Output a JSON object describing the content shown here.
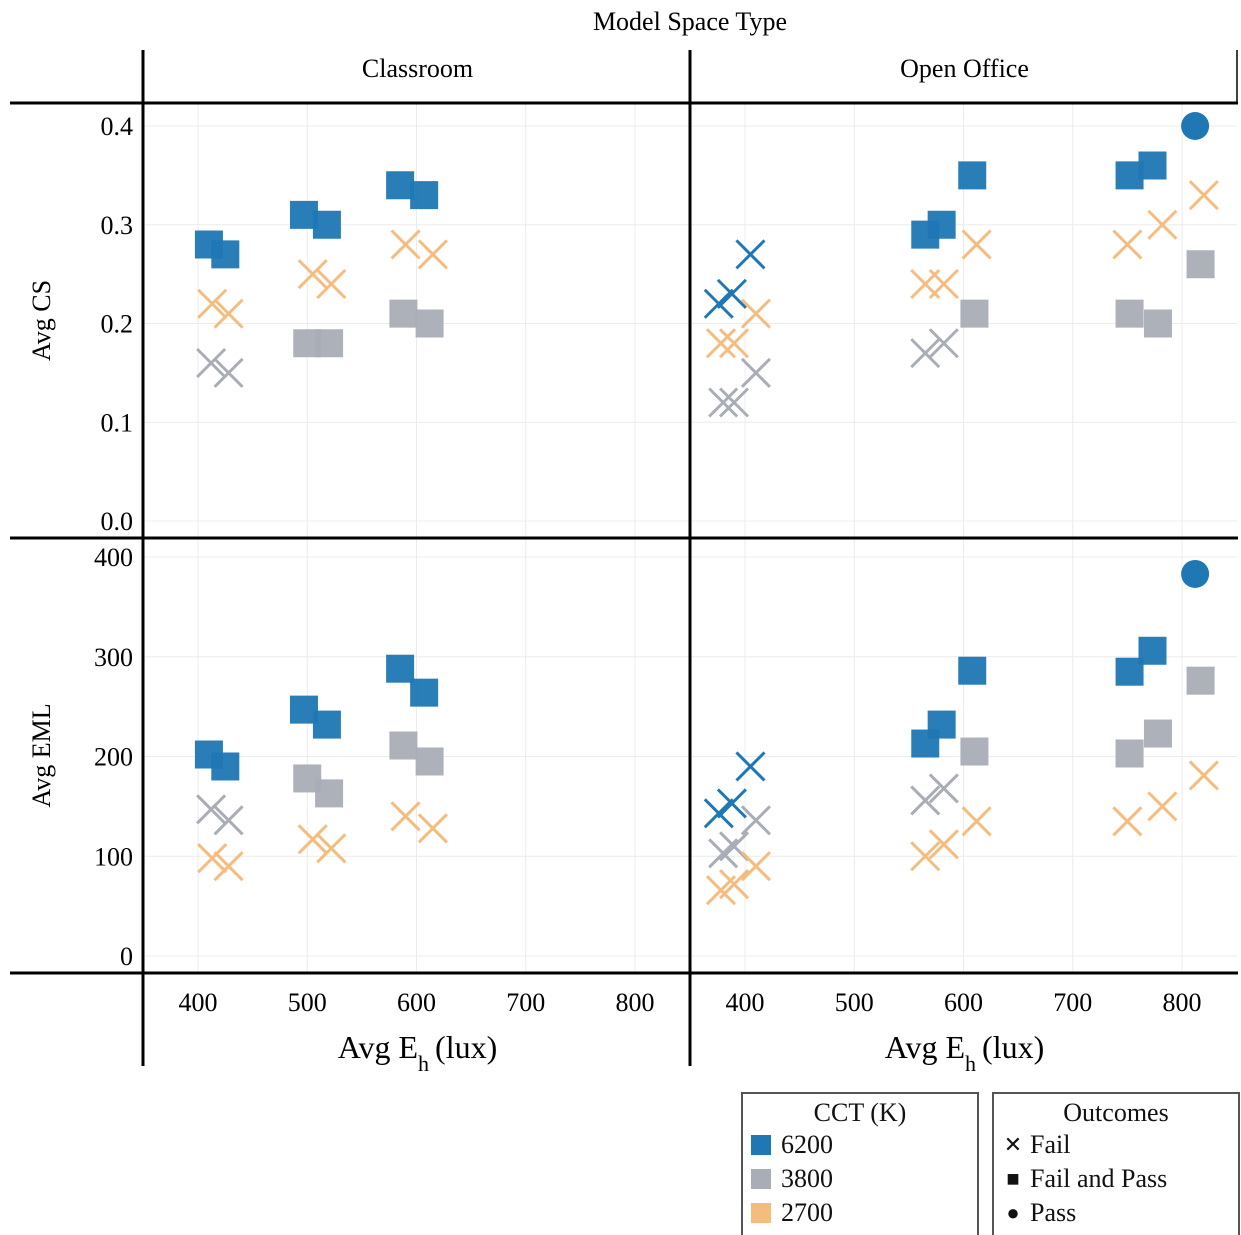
{
  "chart_data": {
    "type": "scatter",
    "title": "Model Space Type",
    "xlabel_main": "Avg E",
    "xlabel_sub": "h",
    "xlabel_unit": "(lux)",
    "xlim": [
      350,
      830
    ],
    "x_ticks": [
      "400",
      "500",
      "600",
      "700",
      "800"
    ],
    "columns": [
      "Classroom",
      "Open Office"
    ],
    "rows": [
      {
        "name": "Avg CS",
        "ylim": [
          0,
          0.42
        ],
        "ticks": [
          "0.0",
          "0.1",
          "0.2",
          "0.3",
          "0.4"
        ],
        "tick_values": [
          0,
          0.1,
          0.2,
          0.3,
          0.4
        ]
      },
      {
        "name": "Avg EML",
        "ylim": [
          0,
          405
        ],
        "ticks": [
          "0",
          "100",
          "200",
          "300",
          "400"
        ],
        "tick_values": [
          0,
          100,
          200,
          300,
          400
        ]
      }
    ],
    "colors": {
      "6200": "#1f77b4",
      "3800": "#a9adb6",
      "2700": "#f6bc7e"
    },
    "panels": [
      {
        "row": 0,
        "col": 0,
        "points": [
          {
            "x": 410,
            "y": 0.28,
            "cct": "6200",
            "outcome": "Fail and Pass"
          },
          {
            "x": 425,
            "y": 0.27,
            "cct": "6200",
            "outcome": "Fail and Pass"
          },
          {
            "x": 497,
            "y": 0.31,
            "cct": "6200",
            "outcome": "Fail and Pass"
          },
          {
            "x": 518,
            "y": 0.3,
            "cct": "6200",
            "outcome": "Fail and Pass"
          },
          {
            "x": 585,
            "y": 0.34,
            "cct": "6200",
            "outcome": "Fail and Pass"
          },
          {
            "x": 607,
            "y": 0.33,
            "cct": "6200",
            "outcome": "Fail and Pass"
          },
          {
            "x": 413,
            "y": 0.22,
            "cct": "2700",
            "outcome": "Fail"
          },
          {
            "x": 428,
            "y": 0.21,
            "cct": "2700",
            "outcome": "Fail"
          },
          {
            "x": 505,
            "y": 0.25,
            "cct": "2700",
            "outcome": "Fail"
          },
          {
            "x": 522,
            "y": 0.24,
            "cct": "2700",
            "outcome": "Fail"
          },
          {
            "x": 590,
            "y": 0.28,
            "cct": "2700",
            "outcome": "Fail"
          },
          {
            "x": 615,
            "y": 0.27,
            "cct": "2700",
            "outcome": "Fail"
          },
          {
            "x": 412,
            "y": 0.16,
            "cct": "3800",
            "outcome": "Fail"
          },
          {
            "x": 428,
            "y": 0.15,
            "cct": "3800",
            "outcome": "Fail"
          },
          {
            "x": 500,
            "y": 0.18,
            "cct": "3800",
            "outcome": "Fail and Pass"
          },
          {
            "x": 520,
            "y": 0.18,
            "cct": "3800",
            "outcome": "Fail and Pass"
          },
          {
            "x": 588,
            "y": 0.21,
            "cct": "3800",
            "outcome": "Fail and Pass"
          },
          {
            "x": 612,
            "y": 0.2,
            "cct": "3800",
            "outcome": "Fail and Pass"
          }
        ]
      },
      {
        "row": 0,
        "col": 1,
        "points": [
          {
            "x": 812,
            "y": 0.4,
            "cct": "6200",
            "outcome": "Pass"
          },
          {
            "x": 608,
            "y": 0.35,
            "cct": "6200",
            "outcome": "Fail and Pass"
          },
          {
            "x": 752,
            "y": 0.35,
            "cct": "6200",
            "outcome": "Fail and Pass"
          },
          {
            "x": 773,
            "y": 0.36,
            "cct": "6200",
            "outcome": "Fail and Pass"
          },
          {
            "x": 565,
            "y": 0.29,
            "cct": "6200",
            "outcome": "Fail and Pass"
          },
          {
            "x": 580,
            "y": 0.3,
            "cct": "6200",
            "outcome": "Fail and Pass"
          },
          {
            "x": 376,
            "y": 0.22,
            "cct": "6200",
            "outcome": "Fail"
          },
          {
            "x": 388,
            "y": 0.23,
            "cct": "6200",
            "outcome": "Fail"
          },
          {
            "x": 405,
            "y": 0.27,
            "cct": "6200",
            "outcome": "Fail"
          },
          {
            "x": 378,
            "y": 0.18,
            "cct": "2700",
            "outcome": "Fail"
          },
          {
            "x": 390,
            "y": 0.18,
            "cct": "2700",
            "outcome": "Fail"
          },
          {
            "x": 410,
            "y": 0.21,
            "cct": "2700",
            "outcome": "Fail"
          },
          {
            "x": 565,
            "y": 0.24,
            "cct": "2700",
            "outcome": "Fail"
          },
          {
            "x": 582,
            "y": 0.24,
            "cct": "2700",
            "outcome": "Fail"
          },
          {
            "x": 612,
            "y": 0.28,
            "cct": "2700",
            "outcome": "Fail"
          },
          {
            "x": 750,
            "y": 0.28,
            "cct": "2700",
            "outcome": "Fail"
          },
          {
            "x": 782,
            "y": 0.3,
            "cct": "2700",
            "outcome": "Fail"
          },
          {
            "x": 820,
            "y": 0.33,
            "cct": "2700",
            "outcome": "Fail"
          },
          {
            "x": 380,
            "y": 0.12,
            "cct": "3800",
            "outcome": "Fail"
          },
          {
            "x": 390,
            "y": 0.12,
            "cct": "3800",
            "outcome": "Fail"
          },
          {
            "x": 410,
            "y": 0.15,
            "cct": "3800",
            "outcome": "Fail"
          },
          {
            "x": 565,
            "y": 0.17,
            "cct": "3800",
            "outcome": "Fail"
          },
          {
            "x": 582,
            "y": 0.18,
            "cct": "3800",
            "outcome": "Fail"
          },
          {
            "x": 610,
            "y": 0.21,
            "cct": "3800",
            "outcome": "Fail and Pass"
          },
          {
            "x": 752,
            "y": 0.21,
            "cct": "3800",
            "outcome": "Fail and Pass"
          },
          {
            "x": 778,
            "y": 0.2,
            "cct": "3800",
            "outcome": "Fail and Pass"
          },
          {
            "x": 817,
            "y": 0.26,
            "cct": "3800",
            "outcome": "Fail and Pass"
          }
        ]
      },
      {
        "row": 1,
        "col": 0,
        "points": [
          {
            "x": 410,
            "y": 202,
            "cct": "6200",
            "outcome": "Fail and Pass"
          },
          {
            "x": 425,
            "y": 190,
            "cct": "6200",
            "outcome": "Fail and Pass"
          },
          {
            "x": 497,
            "y": 247,
            "cct": "6200",
            "outcome": "Fail and Pass"
          },
          {
            "x": 518,
            "y": 232,
            "cct": "6200",
            "outcome": "Fail and Pass"
          },
          {
            "x": 585,
            "y": 288,
            "cct": "6200",
            "outcome": "Fail and Pass"
          },
          {
            "x": 607,
            "y": 264,
            "cct": "6200",
            "outcome": "Fail and Pass"
          },
          {
            "x": 412,
            "y": 147,
            "cct": "3800",
            "outcome": "Fail"
          },
          {
            "x": 428,
            "y": 136,
            "cct": "3800",
            "outcome": "Fail"
          },
          {
            "x": 500,
            "y": 178,
            "cct": "3800",
            "outcome": "Fail and Pass"
          },
          {
            "x": 520,
            "y": 163,
            "cct": "3800",
            "outcome": "Fail and Pass"
          },
          {
            "x": 588,
            "y": 211,
            "cct": "3800",
            "outcome": "Fail and Pass"
          },
          {
            "x": 612,
            "y": 195,
            "cct": "3800",
            "outcome": "Fail and Pass"
          },
          {
            "x": 413,
            "y": 98,
            "cct": "2700",
            "outcome": "Fail"
          },
          {
            "x": 428,
            "y": 90,
            "cct": "2700",
            "outcome": "Fail"
          },
          {
            "x": 505,
            "y": 117,
            "cct": "2700",
            "outcome": "Fail"
          },
          {
            "x": 522,
            "y": 108,
            "cct": "2700",
            "outcome": "Fail"
          },
          {
            "x": 590,
            "y": 140,
            "cct": "2700",
            "outcome": "Fail"
          },
          {
            "x": 615,
            "y": 128,
            "cct": "2700",
            "outcome": "Fail"
          }
        ]
      },
      {
        "row": 1,
        "col": 1,
        "points": [
          {
            "x": 812,
            "y": 383,
            "cct": "6200",
            "outcome": "Pass"
          },
          {
            "x": 608,
            "y": 286,
            "cct": "6200",
            "outcome": "Fail and Pass"
          },
          {
            "x": 752,
            "y": 285,
            "cct": "6200",
            "outcome": "Fail and Pass"
          },
          {
            "x": 773,
            "y": 306,
            "cct": "6200",
            "outcome": "Fail and Pass"
          },
          {
            "x": 565,
            "y": 213,
            "cct": "6200",
            "outcome": "Fail and Pass"
          },
          {
            "x": 580,
            "y": 232,
            "cct": "6200",
            "outcome": "Fail and Pass"
          },
          {
            "x": 376,
            "y": 143,
            "cct": "6200",
            "outcome": "Fail"
          },
          {
            "x": 388,
            "y": 153,
            "cct": "6200",
            "outcome": "Fail"
          },
          {
            "x": 405,
            "y": 190,
            "cct": "6200",
            "outcome": "Fail"
          },
          {
            "x": 610,
            "y": 205,
            "cct": "3800",
            "outcome": "Fail and Pass"
          },
          {
            "x": 752,
            "y": 203,
            "cct": "3800",
            "outcome": "Fail and Pass"
          },
          {
            "x": 778,
            "y": 223,
            "cct": "3800",
            "outcome": "Fail and Pass"
          },
          {
            "x": 817,
            "y": 276,
            "cct": "3800",
            "outcome": "Fail and Pass"
          },
          {
            "x": 565,
            "y": 156,
            "cct": "3800",
            "outcome": "Fail"
          },
          {
            "x": 582,
            "y": 168,
            "cct": "3800",
            "outcome": "Fail"
          },
          {
            "x": 380,
            "y": 103,
            "cct": "3800",
            "outcome": "Fail"
          },
          {
            "x": 390,
            "y": 110,
            "cct": "3800",
            "outcome": "Fail"
          },
          {
            "x": 410,
            "y": 136,
            "cct": "3800",
            "outcome": "Fail"
          },
          {
            "x": 378,
            "y": 66,
            "cct": "2700",
            "outcome": "Fail"
          },
          {
            "x": 390,
            "y": 72,
            "cct": "2700",
            "outcome": "Fail"
          },
          {
            "x": 410,
            "y": 90,
            "cct": "2700",
            "outcome": "Fail"
          },
          {
            "x": 565,
            "y": 100,
            "cct": "2700",
            "outcome": "Fail"
          },
          {
            "x": 582,
            "y": 112,
            "cct": "2700",
            "outcome": "Fail"
          },
          {
            "x": 612,
            "y": 135,
            "cct": "2700",
            "outcome": "Fail"
          },
          {
            "x": 750,
            "y": 135,
            "cct": "2700",
            "outcome": "Fail"
          },
          {
            "x": 782,
            "y": 150,
            "cct": "2700",
            "outcome": "Fail"
          },
          {
            "x": 820,
            "y": 181,
            "cct": "2700",
            "outcome": "Fail"
          }
        ]
      }
    ]
  },
  "legend": {
    "cct_title": "CCT (K)",
    "cct_items": [
      {
        "label": "6200",
        "color": "#1f77b4"
      },
      {
        "label": "3800",
        "color": "#a9adb6"
      },
      {
        "label": "2700",
        "color": "#f6bc7e"
      }
    ],
    "outcomes_title": "Outcomes",
    "outcome_items": [
      {
        "label": "Fail",
        "icon": "x-marker-icon",
        "glyph": "✕"
      },
      {
        "label": "Fail and Pass",
        "icon": "square-marker-icon",
        "glyph": "■"
      },
      {
        "label": "Pass",
        "icon": "circle-marker-icon",
        "glyph": "●"
      }
    ]
  }
}
